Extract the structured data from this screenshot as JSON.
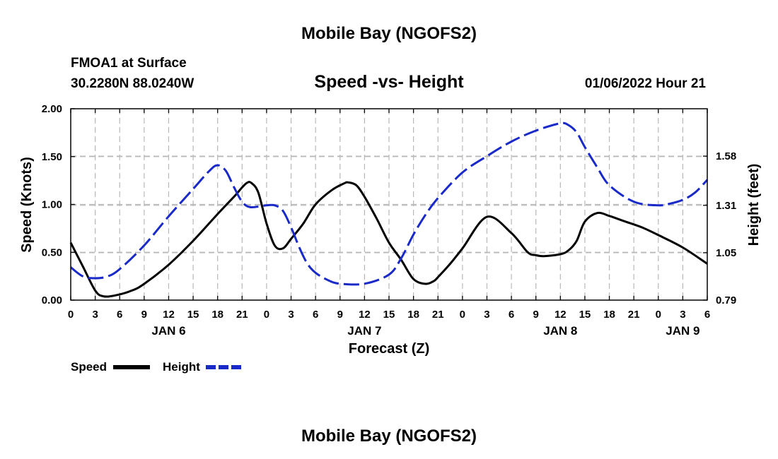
{
  "page": {
    "title_top": "Mobile Bay (NGOFS2)",
    "title_bottom": "Mobile Bay (NGOFS2)",
    "station": "FMOA1 at Surface",
    "coords": "30.2280N  88.0240W",
    "timestamp": "01/06/2022 Hour 21"
  },
  "chart_data": {
    "type": "line",
    "title": "Speed -vs- Height",
    "xlabel": "Forecast (Z)",
    "ylabel_left": "Speed (Knots)",
    "ylabel_right": "Height (feet)",
    "x_unit": "forecast hours since JAN 6 00Z",
    "xlim": [
      0,
      78
    ],
    "ylim_left": [
      0,
      2.0
    ],
    "ylim_right": [
      0.79,
      1.84
    ],
    "x_ticks": [
      0,
      3,
      6,
      9,
      12,
      15,
      18,
      21,
      24,
      27,
      30,
      33,
      36,
      39,
      42,
      45,
      48,
      51,
      54,
      57,
      60,
      63,
      66,
      69,
      72,
      75,
      78
    ],
    "x_tick_labels": [
      "0",
      "3",
      "6",
      "9",
      "12",
      "15",
      "18",
      "21",
      "0",
      "3",
      "6",
      "9",
      "12",
      "15",
      "18",
      "21",
      "0",
      "3",
      "6",
      "9",
      "12",
      "15",
      "18",
      "21",
      "0",
      "3",
      "6"
    ],
    "day_labels": [
      {
        "x": 12,
        "label": "JAN 6"
      },
      {
        "x": 36,
        "label": "JAN 7"
      },
      {
        "x": 60,
        "label": "JAN 8"
      },
      {
        "x": 75,
        "label": "JAN 9"
      }
    ],
    "y_ticks_left": [
      0,
      0.5,
      1.0,
      1.5,
      2.0
    ],
    "y_tick_labels_left": [
      "0.00",
      "0.50",
      "1.00",
      "1.50",
      "2.00"
    ],
    "y_ticks_right": [
      0.79,
      1.05,
      1.31,
      1.58
    ],
    "y_tick_labels_right": [
      "0.79",
      "1.05",
      "1.31",
      "1.58"
    ],
    "grid": true,
    "legend_position": "bottom-left",
    "series": [
      {
        "name": "Speed",
        "axis": "left",
        "color": "#000000",
        "style": "solid",
        "x": [
          0,
          1.5,
          3,
          4,
          5.5,
          7.5,
          9,
          12,
          15,
          18,
          20,
          21.5,
          22.2,
          23,
          24,
          25,
          26,
          27,
          28.5,
          30,
          32,
          33.5,
          34,
          35,
          36,
          37.5,
          39,
          40.5,
          42,
          43.5,
          44.5,
          45,
          46.5,
          48,
          51,
          54,
          56,
          57,
          58,
          60,
          61,
          62,
          63,
          64.5,
          66,
          67,
          68,
          70,
          72,
          75,
          78
        ],
        "y": [
          0.6,
          0.35,
          0.1,
          0.04,
          0.05,
          0.1,
          0.17,
          0.37,
          0.62,
          0.9,
          1.08,
          1.22,
          1.22,
          1.12,
          0.8,
          0.57,
          0.54,
          0.64,
          0.8,
          1.0,
          1.15,
          1.22,
          1.23,
          1.2,
          1.08,
          0.85,
          0.6,
          0.42,
          0.22,
          0.17,
          0.2,
          0.24,
          0.38,
          0.54,
          0.87,
          0.7,
          0.5,
          0.47,
          0.46,
          0.48,
          0.52,
          0.62,
          0.82,
          0.91,
          0.88,
          0.85,
          0.82,
          0.76,
          0.68,
          0.55,
          0.38
        ]
      },
      {
        "name": "Height",
        "axis": "right",
        "color": "#1a2ac8",
        "style": "dashed",
        "x": [
          0,
          1.5,
          3,
          4.5,
          6,
          9,
          12,
          15,
          17,
          18,
          19,
          20,
          21,
          22,
          24,
          25,
          26,
          27,
          28,
          29,
          30,
          31.5,
          33,
          36,
          39,
          40.5,
          42,
          43.5,
          45,
          48,
          51,
          54,
          57,
          60,
          61,
          62,
          63,
          64.5,
          66,
          69,
          72,
          73.5,
          75,
          76.5,
          78
        ],
        "y": [
          0.97,
          0.92,
          0.91,
          0.92,
          0.96,
          1.09,
          1.25,
          1.4,
          1.5,
          1.53,
          1.5,
          1.41,
          1.33,
          1.3,
          1.31,
          1.31,
          1.28,
          1.19,
          1.08,
          0.99,
          0.94,
          0.9,
          0.88,
          0.88,
          0.93,
          1.02,
          1.15,
          1.26,
          1.35,
          1.49,
          1.58,
          1.66,
          1.72,
          1.76,
          1.75,
          1.71,
          1.63,
          1.52,
          1.42,
          1.33,
          1.31,
          1.32,
          1.34,
          1.38,
          1.45
        ]
      }
    ]
  }
}
